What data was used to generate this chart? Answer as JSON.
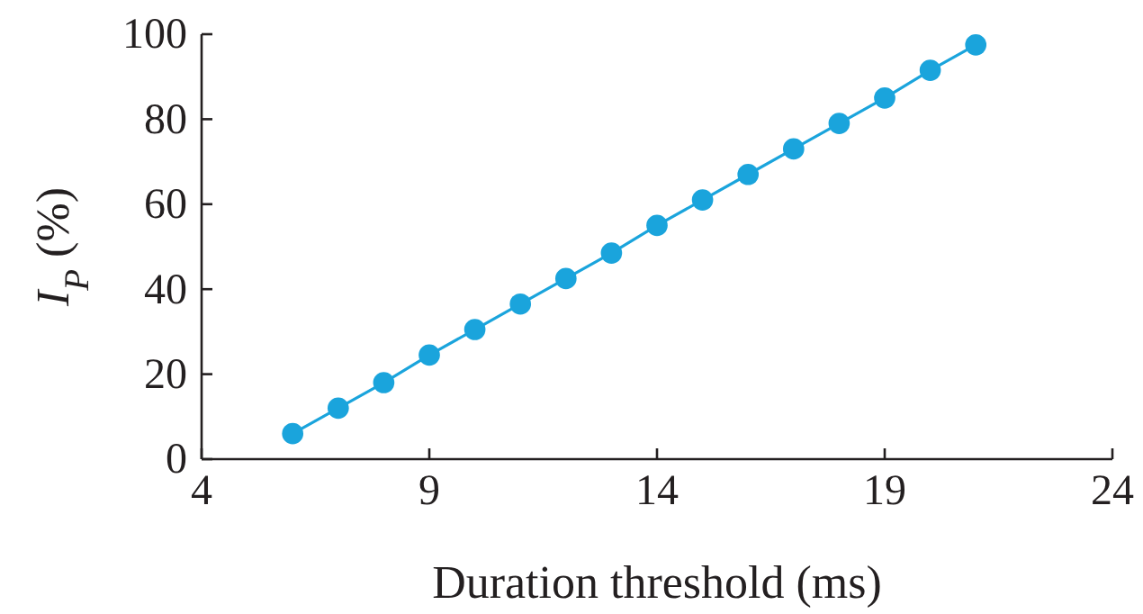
{
  "chart_data": {
    "type": "line",
    "xlabel": "Duration threshold (ms)",
    "ylabel": "I$_{P}$ (%)",
    "x": [
      6,
      7,
      8,
      9,
      10,
      11,
      12,
      13,
      14,
      15,
      16,
      17,
      18,
      19,
      20,
      21
    ],
    "series": [
      {
        "color": "#1aa4dc",
        "values": [
          6,
          12,
          18,
          24.5,
          30.5,
          36.5,
          42.5,
          48.5,
          55,
          61,
          67,
          73,
          79,
          85,
          91.5,
          97.5
        ]
      }
    ],
    "xlim": [
      4,
      24
    ],
    "xticks": [
      4,
      9,
      14,
      19,
      24
    ],
    "ylim": [
      0,
      100
    ],
    "yticks": [
      0,
      20,
      40,
      60,
      80,
      100
    ],
    "marker": "circle",
    "line_style": "solid"
  }
}
